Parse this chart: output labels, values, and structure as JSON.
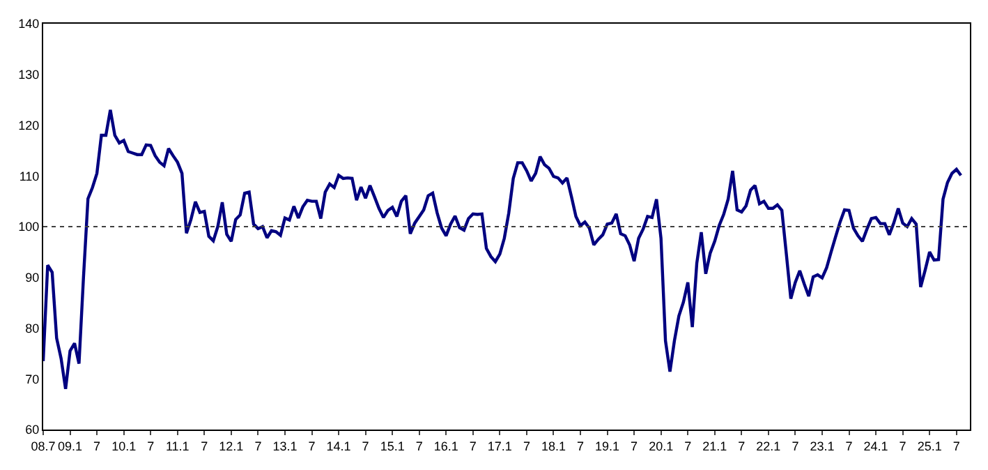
{
  "chart_data": {
    "type": "line",
    "categories": [
      "08.7",
      null,
      null,
      null,
      null,
      null,
      "09.1",
      null,
      null,
      null,
      null,
      null,
      "7",
      null,
      null,
      null,
      null,
      null,
      "10.1",
      null,
      null,
      null,
      null,
      null,
      "7",
      null,
      null,
      null,
      null,
      null,
      "11.1",
      null,
      null,
      null,
      null,
      null,
      "7",
      null,
      null,
      null,
      null,
      null,
      "12.1",
      null,
      null,
      null,
      null,
      null,
      "7",
      null,
      null,
      null,
      null,
      null,
      "13.1",
      null,
      null,
      null,
      null,
      null,
      "7",
      null,
      null,
      null,
      null,
      null,
      "14.1",
      null,
      null,
      null,
      null,
      null,
      "7",
      null,
      null,
      null,
      null,
      null,
      "15.1",
      null,
      null,
      null,
      null,
      null,
      "7",
      null,
      null,
      null,
      null,
      null,
      "16.1",
      null,
      null,
      null,
      null,
      null,
      "7",
      null,
      null,
      null,
      null,
      null,
      "17.1",
      null,
      null,
      null,
      null,
      null,
      "7",
      null,
      null,
      null,
      null,
      null,
      "18.1",
      null,
      null,
      null,
      null,
      null,
      "7",
      null,
      null,
      null,
      null,
      null,
      "19.1",
      null,
      null,
      null,
      null,
      null,
      "7",
      null,
      null,
      null,
      null,
      null,
      "20.1",
      null,
      null,
      null,
      null,
      null,
      "7",
      null,
      null,
      null,
      null,
      null,
      "21.1",
      null,
      null,
      null,
      null,
      null,
      "7",
      null,
      null,
      null,
      null,
      null,
      "22.1",
      null,
      null,
      null,
      null,
      null,
      "7",
      null,
      null,
      null,
      null,
      null,
      "23.1",
      null,
      null,
      null,
      null,
      null,
      "7",
      null,
      null,
      null,
      null,
      null,
      "24.1",
      null,
      null,
      null,
      null,
      null,
      "7",
      null,
      null,
      null,
      null,
      null,
      "25.1",
      null,
      null,
      null,
      null,
      null,
      "7",
      null
    ],
    "series": [
      {
        "color": "#000080",
        "values": [
          73.5,
          92.4,
          91,
          78,
          74,
          68,
          75.5,
          77,
          73,
          90,
          105.5,
          107.7,
          110.5,
          118,
          118,
          123,
          118,
          116.5,
          117,
          114.8,
          114.5,
          114.2,
          114.2,
          116.1,
          116,
          114,
          112.7,
          112,
          115.4,
          114,
          112.7,
          110.5,
          98.7,
          101.4,
          104.9,
          102.8,
          103,
          98.1,
          97.2,
          100,
          104.8,
          98.5,
          97.1,
          101.4,
          102.3,
          106.6,
          106.8,
          100.5,
          99.6,
          100,
          97.8,
          99.2,
          99,
          98.3,
          101.7,
          101.3,
          104,
          101.7,
          103.9,
          105.2,
          105,
          105,
          101.6,
          106.8,
          108.4,
          107.7,
          110.1,
          109.5,
          109.6,
          109.5,
          105.2,
          107.8,
          105.6,
          108.1,
          105.9,
          103.6,
          101.8,
          103.2,
          103.8,
          102,
          105,
          106.1,
          98.6,
          100.7,
          102,
          103.3,
          106.1,
          106.6,
          102.7,
          99.7,
          98.2,
          100.5,
          102.1,
          99.8,
          99.3,
          101.6,
          102.5,
          102.4,
          102.5,
          95.7,
          94.1,
          93.1,
          94.6,
          97.7,
          102.7,
          109.5,
          112.6,
          112.6,
          111,
          109,
          110.5,
          113.8,
          112.2,
          111.5,
          109.9,
          109.6,
          108.6,
          109.6,
          105.9,
          102,
          100.2,
          100.9,
          99.7,
          96.4,
          97.5,
          98.4,
          100.5,
          100.7,
          102.5,
          98.6,
          98.2,
          96.4,
          93.2,
          97.7,
          99.5,
          102,
          101.8,
          105.4,
          97.7,
          77.5,
          71.4,
          77.5,
          82.4,
          85.1,
          89,
          80.2,
          92.8,
          98.9,
          90.7,
          94.8,
          97.1,
          100.2,
          102.4,
          105.4,
          111,
          103.3,
          102.9,
          104.1,
          107.2,
          108.1,
          104.5,
          105,
          103.6,
          103.6,
          104.3,
          103.2,
          94.6,
          85.8,
          89,
          91.3,
          88.7,
          86.3,
          90.1,
          90.5,
          89.9,
          91.9,
          95,
          98,
          100.9,
          103.3,
          103.2,
          99.7,
          98.2,
          97.1,
          99.5,
          101.6,
          101.8,
          100.6,
          100.6,
          98.4,
          100.7,
          103.6,
          100.7,
          100,
          101.6,
          100.5,
          88.1,
          91.4,
          95,
          93.4,
          93.5,
          105.4,
          108.7,
          110.5,
          111.3,
          110.1
        ]
      }
    ],
    "ylim": [
      60,
      140
    ],
    "yticks": [
      60,
      70,
      80,
      90,
      100,
      110,
      120,
      130,
      140
    ],
    "ref_lines": [
      {
        "axis": "y",
        "value": 100,
        "color": "#404040",
        "line_style": "dotted"
      }
    ],
    "marker": "none",
    "line_style": "solid"
  }
}
